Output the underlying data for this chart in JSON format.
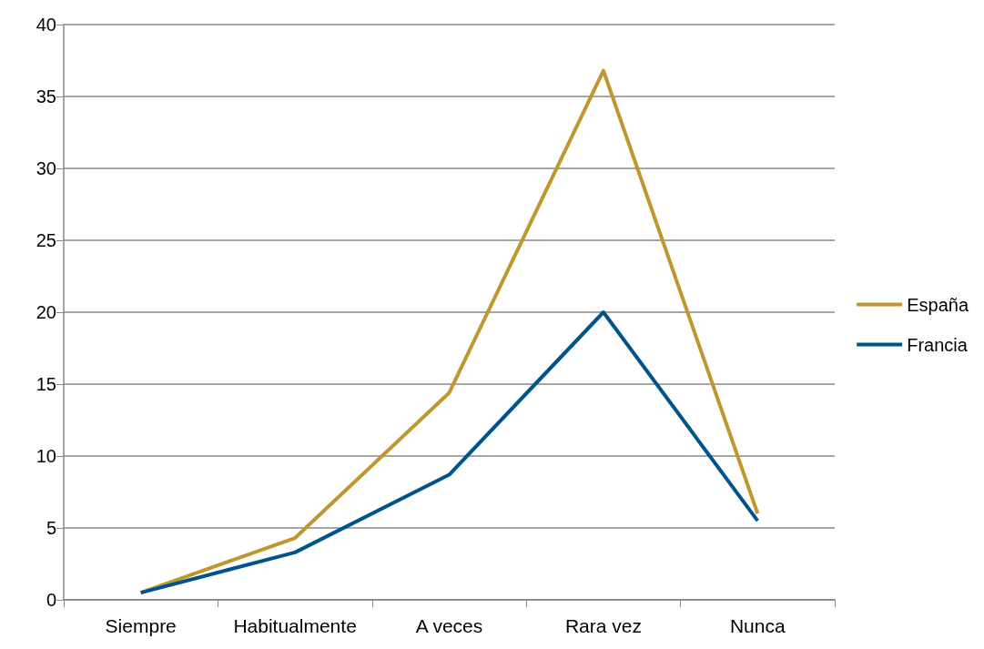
{
  "chart_data": {
    "type": "line",
    "categories": [
      "Siempre",
      "Habitualmente",
      "A veces",
      "Rara vez",
      "Nunca"
    ],
    "series": [
      {
        "name": "España",
        "color": "#c0972f",
        "values": [
          0.5,
          4.3,
          14.4,
          36.8,
          6.0
        ]
      },
      {
        "name": "Francia",
        "color": "#00548c",
        "values": [
          0.5,
          3.3,
          8.7,
          20.0,
          5.5
        ]
      }
    ],
    "ylim": [
      0,
      40
    ],
    "yticks": [
      0,
      5,
      10,
      15,
      20,
      25,
      30,
      35,
      40
    ],
    "grid": "y",
    "legend": "right",
    "marker": "none",
    "line_style": "solid"
  }
}
